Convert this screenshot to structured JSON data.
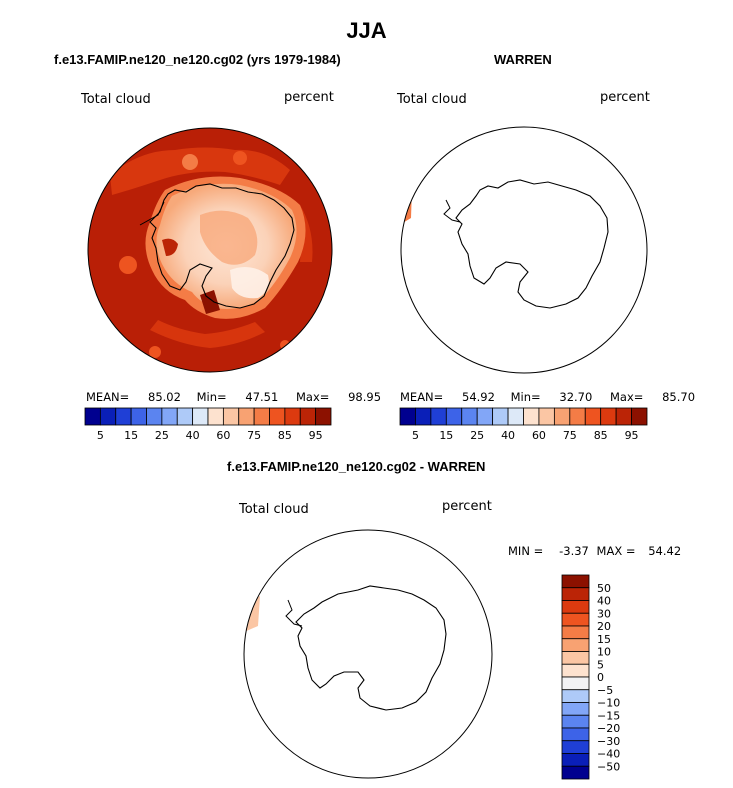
{
  "main_title": "JJA",
  "panels": {
    "model": {
      "title": "f.e13.FAMIP.ne120_ne120.cg02 (yrs 1979-1984)",
      "variable": "Total cloud",
      "units": "percent",
      "stats": {
        "mean_label": "MEAN=",
        "mean": "85.02",
        "min_label": "Min=",
        "min": "47.51",
        "max_label": "Max=",
        "max": "98.95"
      }
    },
    "obs": {
      "title": "WARREN",
      "variable": "Total cloud",
      "units": "percent",
      "stats": {
        "mean_label": "MEAN=",
        "mean": "54.92",
        "min_label": "Min=",
        "min": "32.70",
        "max_label": "Max=",
        "max": "85.70"
      }
    },
    "diff": {
      "title": "f.e13.FAMIP.ne120_ne120.cg02 - WARREN",
      "variable": "Total cloud",
      "units": "percent",
      "stats": {
        "min_label": "MIN =",
        "min": "-3.37",
        "max_label": "MAX =",
        "max": "54.42"
      }
    }
  },
  "chart_data": [
    {
      "type": "heatmap",
      "projection": "south-polar-stereographic",
      "title": "f.e13.FAMIP.ne120_ne120.cg02 (yrs 1979-1984)",
      "variable": "Total cloud",
      "units": "percent",
      "mean": 85.02,
      "min": 47.51,
      "max": 98.95,
      "colorbar_levels": [
        5,
        10,
        15,
        20,
        25,
        30,
        40,
        50,
        60,
        70,
        75,
        80,
        85,
        90,
        95
      ],
      "colorbar_tick_labels": [
        "5",
        "15",
        "25",
        "40",
        "60",
        "75",
        "85",
        "95"
      ],
      "colorbar_colors": [
        "#00008f",
        "#0a1fb8",
        "#1f3fd6",
        "#3d63e8",
        "#5b84f0",
        "#82a6f7",
        "#aecaf8",
        "#dde9f8",
        "#fde2cf",
        "#fbc6a4",
        "#f8a272",
        "#f47c46",
        "#ee5420",
        "#dc3a0f",
        "#bb2406",
        "#8c1100"
      ]
    },
    {
      "type": "heatmap",
      "projection": "south-polar-stereographic",
      "title": "WARREN",
      "variable": "Total cloud",
      "units": "percent",
      "mean": 54.92,
      "min": 32.7,
      "max": 85.7,
      "colorbar_levels": [
        5,
        10,
        15,
        20,
        25,
        30,
        40,
        50,
        60,
        70,
        75,
        80,
        85,
        90,
        95
      ],
      "colorbar_tick_labels": [
        "5",
        "15",
        "25",
        "40",
        "60",
        "75",
        "85",
        "95"
      ],
      "colorbar_colors": [
        "#00008f",
        "#0a1fb8",
        "#1f3fd6",
        "#3d63e8",
        "#5b84f0",
        "#82a6f7",
        "#aecaf8",
        "#dde9f8",
        "#fde2cf",
        "#fbc6a4",
        "#f8a272",
        "#f47c46",
        "#ee5420",
        "#dc3a0f",
        "#bb2406",
        "#8c1100"
      ]
    },
    {
      "type": "heatmap",
      "projection": "south-polar-stereographic",
      "title": "f.e13.FAMIP.ne120_ne120.cg02 - WARREN",
      "variable": "Total cloud",
      "units": "percent",
      "min": -3.37,
      "max": 54.42,
      "colorbar_tick_labels": [
        "50",
        "40",
        "30",
        "20",
        "15",
        "10",
        "5",
        "0",
        "-5",
        "-10",
        "-15",
        "-20",
        "-30",
        "-40",
        "-50"
      ],
      "colorbar_colors": [
        "#8c1100",
        "#bb2406",
        "#dc3a0f",
        "#ee5420",
        "#f47c46",
        "#f8a272",
        "#fbc6a4",
        "#fde2cf",
        "#f2f2f4",
        "#aecaf8",
        "#82a6f7",
        "#5b84f0",
        "#3d63e8",
        "#1f3fd6",
        "#0a1fb8",
        "#00008f"
      ]
    }
  ]
}
